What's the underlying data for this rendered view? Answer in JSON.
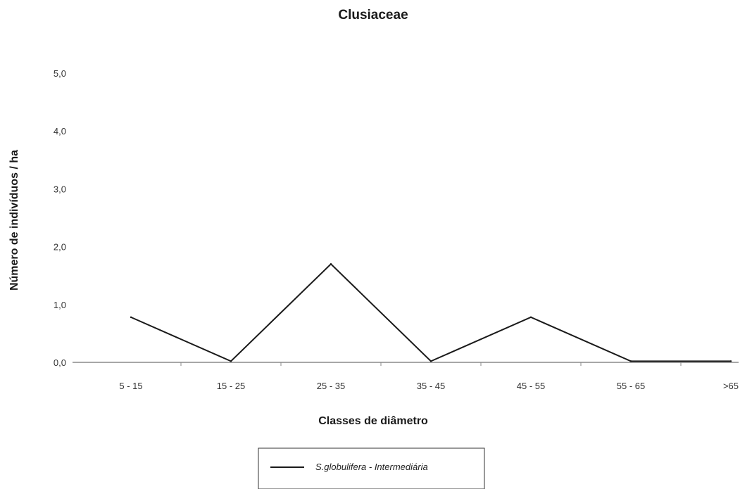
{
  "chart_data": {
    "type": "line",
    "title": "Clusiaceae",
    "xlabel": "Classes de diâmetro",
    "ylabel": "Número de indivíduos / ha",
    "categories": [
      "5 - 15",
      "15 - 25",
      "25 - 35",
      "35 - 45",
      "45 - 55",
      "55 - 65",
      ">65"
    ],
    "ylim": [
      0,
      5
    ],
    "yticks": [
      "0,0",
      "1,0",
      "2,0",
      "3,0",
      "4,0",
      "5,0"
    ],
    "grid": false,
    "legend_position": "bottom",
    "series": [
      {
        "name": "S.globulifera - Intermediária",
        "values": [
          0.78,
          0.02,
          1.7,
          0.02,
          0.78,
          0.02,
          0.02
        ],
        "color": "#1a1a1a"
      }
    ]
  }
}
